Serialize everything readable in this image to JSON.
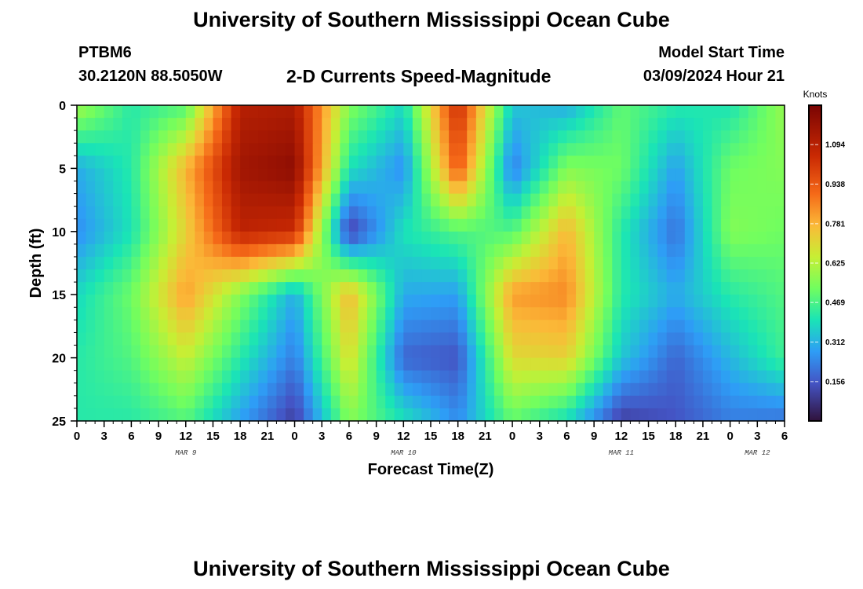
{
  "header": {
    "title": "University of Southern Mississippi Ocean Cube",
    "station": "PTBM6",
    "coords": "30.2120N  88.5050W",
    "plot_title": "2-D Currents Speed-Magnitude",
    "model_start_label": "Model Start Time",
    "model_start_date": "03/09/2024 Hour 21"
  },
  "footer": {
    "title": "University of Southern Mississippi Ocean Cube"
  },
  "chart_data": {
    "type": "heatmap",
    "title": "2-D Currents Speed-Magnitude",
    "xlabel": "Forecast Time(Z)",
    "ylabel": "Depth (ft)",
    "y_ticks": [
      0,
      5,
      10,
      15,
      20,
      25
    ],
    "ylim": [
      0,
      25
    ],
    "x_tick_labels": [
      "0",
      "3",
      "6",
      "9",
      "12",
      "15",
      "18",
      "21",
      "0",
      "3",
      "6",
      "9",
      "12",
      "15",
      "18",
      "21",
      "0",
      "3",
      "6",
      "9",
      "12",
      "15",
      "18",
      "21",
      "0",
      "3",
      "6"
    ],
    "date_labels": [
      {
        "label": "MAR 9",
        "tick_index": 4
      },
      {
        "label": "MAR 10",
        "tick_index": 12
      },
      {
        "label": "MAR 11",
        "tick_index": 20
      },
      {
        "label": "MAR 12",
        "tick_index": 25
      }
    ],
    "colorbar": {
      "unit": "Knots",
      "min": 0.0,
      "max": 1.25,
      "ticks": [
        "1.094",
        "0.938",
        "0.781",
        "0.625",
        "0.469",
        "0.312",
        "0.156"
      ]
    },
    "grid": false,
    "x_bands_hours": [
      0,
      6,
      12,
      18,
      24,
      30,
      36,
      42,
      48,
      54,
      60,
      66,
      72,
      78
    ],
    "depth_levels_ft": [
      0,
      5,
      10,
      15,
      20,
      25
    ],
    "speed_grid_knots": [
      [
        0.6,
        0.42,
        0.48,
        1.1,
        1.12,
        0.55,
        0.38,
        1.05,
        0.35,
        0.3,
        0.5,
        0.42,
        0.4,
        0.58
      ],
      [
        0.3,
        0.42,
        0.78,
        1.15,
        1.2,
        0.4,
        0.25,
        0.95,
        0.22,
        0.55,
        0.52,
        0.28,
        0.52,
        0.55
      ],
      [
        0.25,
        0.4,
        0.72,
        1.08,
        1.05,
        0.1,
        0.4,
        0.48,
        0.48,
        0.78,
        0.42,
        0.2,
        0.55,
        0.52
      ],
      [
        0.38,
        0.52,
        0.82,
        0.55,
        0.3,
        0.78,
        0.3,
        0.28,
        0.82,
        0.85,
        0.42,
        0.3,
        0.42,
        0.48
      ],
      [
        0.42,
        0.48,
        0.65,
        0.42,
        0.22,
        0.7,
        0.18,
        0.15,
        0.7,
        0.72,
        0.35,
        0.18,
        0.32,
        0.45
      ],
      [
        0.42,
        0.42,
        0.48,
        0.28,
        0.1,
        0.55,
        0.4,
        0.25,
        0.5,
        0.38,
        0.1,
        0.15,
        0.22,
        0.2
      ]
    ]
  }
}
